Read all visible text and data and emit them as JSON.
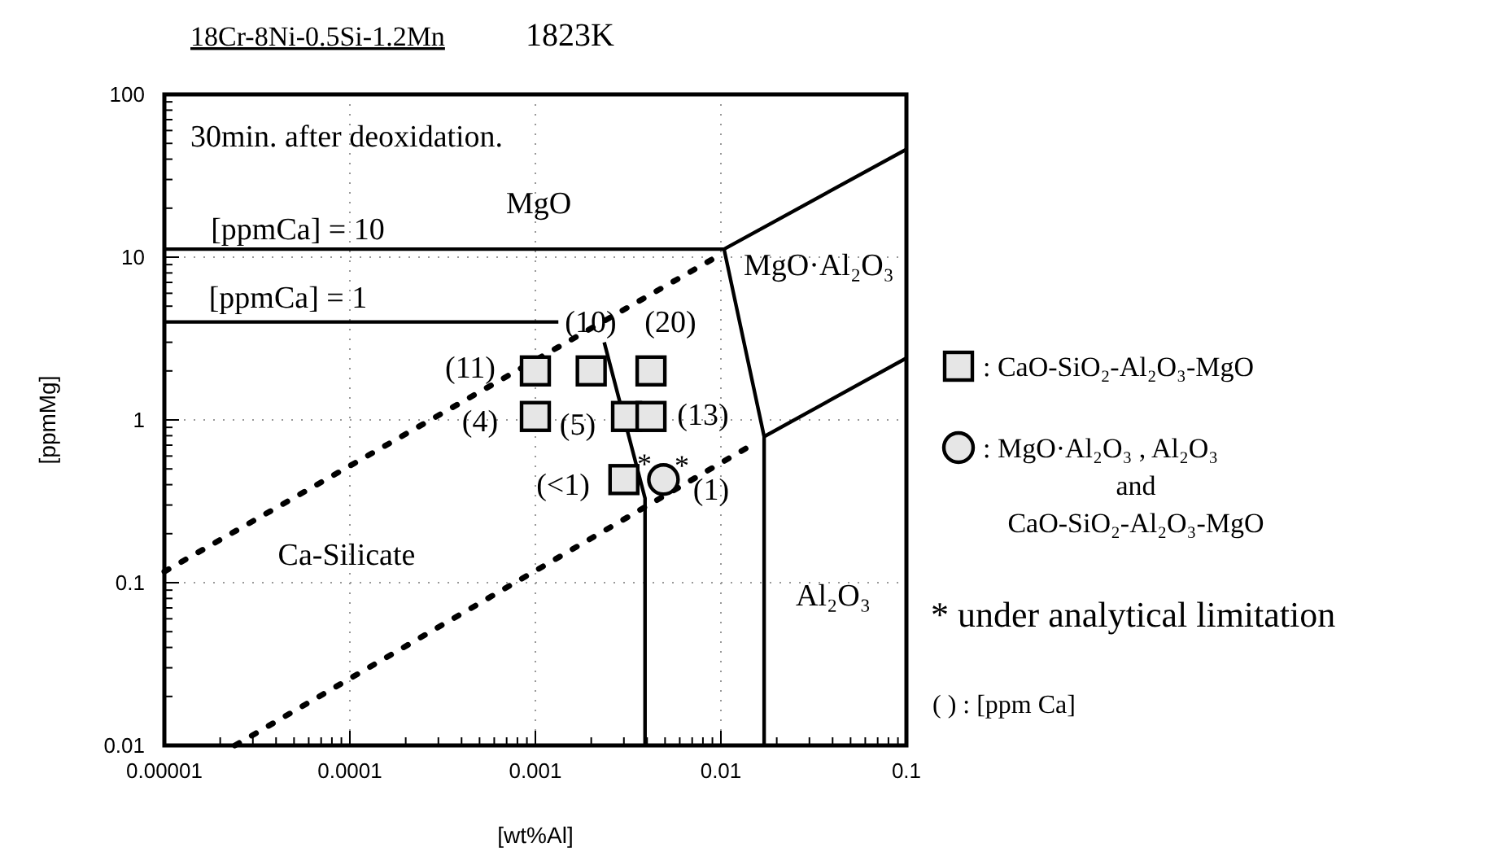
{
  "chart_data": {
    "type": "scatter",
    "title": "18Cr-8Ni-0.5Si-1.2Mn",
    "subtitle": "1823K",
    "xlabel": "[wt%Al]",
    "ylabel": "[ppmMg]",
    "log": "xy",
    "xlim": [
      1e-05,
      0.1
    ],
    "ylim": [
      0.01,
      100
    ],
    "xticks": [
      {
        "value": 1e-05,
        "label": "0.00001"
      },
      {
        "value": 0.0001,
        "label": "0.0001"
      },
      0.001,
      0.01,
      0.1
    ],
    "yticks": [
      0.01,
      0.1,
      1,
      10,
      100
    ],
    "grid": true,
    "legend": "right",
    "series": [
      {
        "type": "line",
        "color": "#000000",
        "line_style": "solid",
        "x": [
          1e-05,
          0.0104,
          0.1
        ],
        "values": [
          11.2,
          11.2,
          46
        ]
      },
      {
        "type": "line",
        "color": "#000000",
        "line_style": "solid",
        "x": [
          0.0104,
          0.0171,
          0.0171
        ],
        "values": [
          11.2,
          0.79,
          0.01
        ]
      },
      {
        "type": "line",
        "color": "#000000",
        "line_style": "solid",
        "x": [
          0.0171,
          0.1
        ],
        "values": [
          0.79,
          2.4
        ]
      },
      {
        "type": "line",
        "color": "#000000",
        "line_style": "solid",
        "x": [
          1e-05,
          0.00133
        ],
        "values": [
          4.0,
          4.0
        ]
      },
      {
        "type": "line",
        "color": "#000000",
        "line_style": "solid",
        "x": [
          0.00235,
          0.0039,
          0.0039
        ],
        "values": [
          3.0,
          0.33,
          0.01
        ]
      },
      {
        "type": "line",
        "color": "#000000",
        "line_style": "dotted",
        "x": [
          1e-05,
          0.01
        ],
        "values": [
          0.117,
          10.4
        ]
      },
      {
        "type": "line",
        "color": "#000000",
        "line_style": "dotted",
        "x": [
          2.4e-05,
          0.014
        ],
        "values": [
          0.01,
          0.68
        ]
      },
      {
        "name": ": CaO-SiO₂-Al₂O₃-MgO",
        "color": "#000000",
        "marker": "square",
        "x": [
          0.001,
          0.002,
          0.0042,
          0.001,
          0.0031,
          0.0042,
          0.003
        ],
        "values": [
          2.0,
          2.0,
          2.0,
          1.05,
          1.05,
          1.05,
          0.43
        ]
      },
      {
        "name": ": MgO·Al₂O₃ , Al₂O₃\nand\nCaO-SiO₂-Al₂O₃-MgO",
        "color": "#000000",
        "marker": "circle",
        "x": [
          0.0049
        ],
        "values": [
          0.43
        ]
      }
    ],
    "annotations": [
      "30min. after deoxidation.",
      "* under analytical limitation",
      "(    ) : [ppm Ca]",
      "MgO",
      "[ppmCa] = 10",
      "[ppmCa] = 1",
      "MgO·Al₂O₃",
      "Al₂O₃",
      "Ca-Silicate",
      "(11)",
      "(10)",
      "(20)",
      "(4)",
      "(5)",
      "(13)",
      "(<1)",
      "(1)",
      "*",
      "*"
    ]
  }
}
